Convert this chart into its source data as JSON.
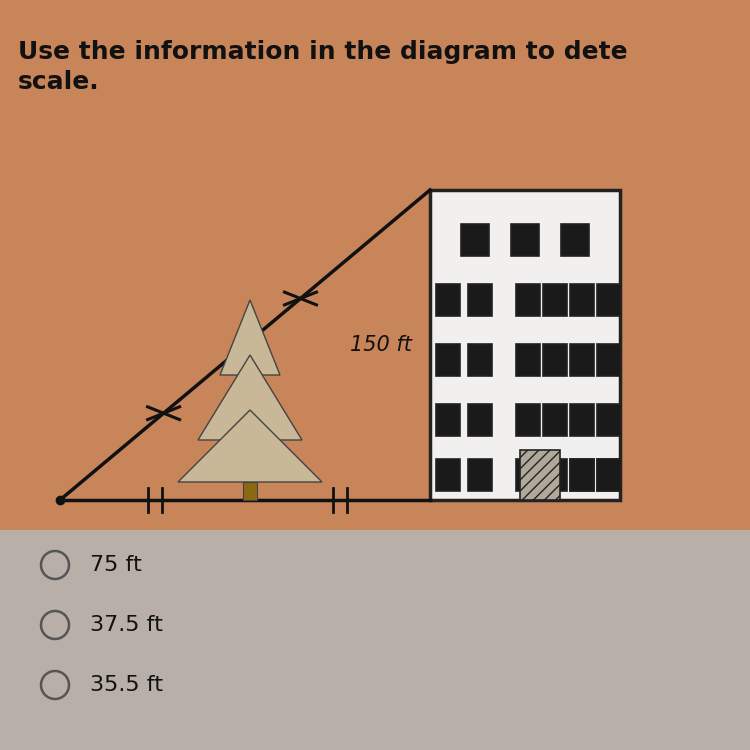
{
  "bg_top": "#c8855a",
  "bg_bottom": "#b8b0a8",
  "title_text1": "Use the information in the diagram to dete",
  "title_text2": "scale.",
  "title_fontsize": 18,
  "title_color": "#111111",
  "answer_options": [
    "75 ft",
    "37.5 ft",
    "35.5 ft"
  ],
  "label_150ft": "150 ft",
  "building_color": "#f2f0ee",
  "building_border": "#222222",
  "window_dark": "#1a1a1a",
  "window_light": "#d0cdc8",
  "door_color": "#b0a898",
  "tree_fill": "#c8b898",
  "tree_border": "#444444",
  "line_color": "#111111",
  "tick_color": "#111111",
  "option_circle_color": "#555555",
  "option_text_color": "#111111"
}
